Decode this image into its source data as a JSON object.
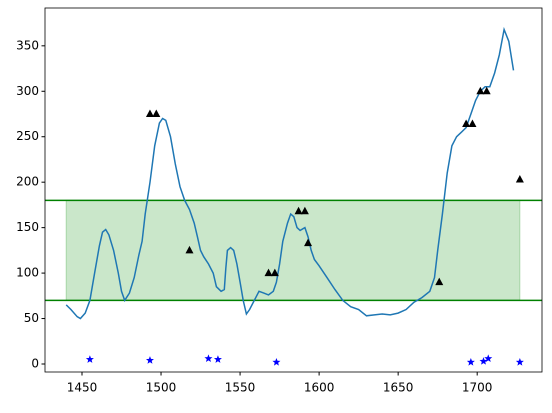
{
  "chart_data": {
    "type": "line",
    "xlim": [
      1426.6,
      1741
    ],
    "ylim": [
      -8.8,
      391.6
    ],
    "xticks": [
      1450,
      1500,
      1550,
      1600,
      1650,
      1700
    ],
    "yticks": [
      0,
      50,
      100,
      150,
      200,
      250,
      300,
      350
    ],
    "hlines": [
      180,
      70
    ],
    "hline_color": "#008000",
    "span": {
      "x": [
        1440,
        1727
      ],
      "y": [
        70,
        180
      ],
      "color": "#2ca02c"
    },
    "series": [
      {
        "color": "#1f77b4",
        "marker": "none",
        "x": [
          1440,
          1443,
          1447,
          1449,
          1452,
          1455,
          1458,
          1461,
          1463,
          1465,
          1467,
          1470,
          1473,
          1475,
          1477,
          1480,
          1483,
          1486,
          1488,
          1490,
          1493,
          1496,
          1499,
          1501,
          1503,
          1506,
          1509,
          1512,
          1515,
          1518,
          1521,
          1523,
          1525,
          1527,
          1530,
          1533,
          1535,
          1538,
          1540,
          1541,
          1542,
          1544,
          1546,
          1548,
          1550,
          1552,
          1554,
          1556,
          1559,
          1562,
          1565,
          1568,
          1571,
          1573,
          1575,
          1577,
          1580,
          1582,
          1584,
          1586,
          1588,
          1591,
          1593,
          1595,
          1597,
          1600,
          1605,
          1610,
          1615,
          1620,
          1625,
          1630,
          1635,
          1640,
          1645,
          1650,
          1655,
          1660,
          1665,
          1670,
          1673,
          1675,
          1678,
          1681,
          1684,
          1687,
          1690,
          1693,
          1696,
          1699,
          1702,
          1705,
          1708,
          1711,
          1714,
          1717,
          1720,
          1723
        ],
        "values": [
          65,
          60,
          52,
          50,
          56,
          70,
          100,
          130,
          145,
          148,
          142,
          125,
          100,
          80,
          70,
          78,
          95,
          120,
          135,
          165,
          200,
          240,
          265,
          270,
          268,
          250,
          220,
          195,
          180,
          170,
          155,
          140,
          125,
          118,
          110,
          100,
          85,
          80,
          82,
          105,
          125,
          128,
          125,
          110,
          90,
          70,
          55,
          60,
          70,
          80,
          78,
          76,
          80,
          90,
          110,
          135,
          155,
          165,
          162,
          150,
          147,
          150,
          140,
          125,
          115,
          108,
          95,
          82,
          70,
          63,
          60,
          53,
          54,
          55,
          54,
          56,
          60,
          68,
          73,
          80,
          95,
          125,
          165,
          210,
          240,
          250,
          255,
          260,
          275,
          290,
          300,
          305,
          305,
          320,
          340,
          368,
          355,
          323
        ]
      },
      {
        "color": "#000000",
        "marker": "triangle",
        "x": [
          1493,
          1497,
          1518,
          1568,
          1572,
          1587,
          1591,
          1593,
          1676,
          1693,
          1697,
          1702,
          1706,
          1727
        ],
        "values": [
          275,
          275,
          125,
          100,
          100,
          168,
          168,
          133,
          90,
          264,
          264,
          300,
          300,
          203
        ]
      },
      {
        "color": "#0000ff",
        "marker": "star",
        "x": [
          1455,
          1493,
          1530,
          1536,
          1573,
          1696,
          1704,
          1707,
          1727
        ],
        "values": [
          5,
          4,
          6,
          5,
          2,
          2,
          3,
          6,
          2
        ]
      }
    ]
  }
}
